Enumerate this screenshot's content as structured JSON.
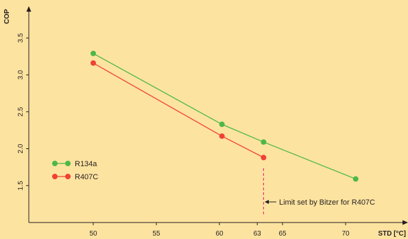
{
  "chart_data": {
    "type": "line",
    "xlabel": "STD [°C]",
    "ylabel": "COP",
    "xlim": [
      45,
      75
    ],
    "ylim": [
      1.0,
      4.0
    ],
    "x_ticks": [
      50,
      55,
      60,
      63,
      65,
      70
    ],
    "y_ticks": [
      1.5,
      2.0,
      2.5,
      3.0,
      3.5
    ],
    "grid": false,
    "legend_position": "left",
    "series": [
      {
        "name": "R134a",
        "color": "#4db848",
        "points": [
          {
            "x": 50,
            "y": 3.29
          },
          {
            "x": 60.2,
            "y": 2.33
          },
          {
            "x": 63.5,
            "y": 2.09
          },
          {
            "x": 70.8,
            "y": 1.59
          }
        ]
      },
      {
        "name": "R407C",
        "color": "#ef4136",
        "points": [
          {
            "x": 50,
            "y": 3.16
          },
          {
            "x": 60.2,
            "y": 2.17
          },
          {
            "x": 63.5,
            "y": 1.88
          }
        ]
      }
    ],
    "annotation": {
      "text": "Limit set by Bitzer for R407C",
      "x": 63.5,
      "y_from": 1.0,
      "y_to": 1.75,
      "color": "#e8387a"
    }
  }
}
